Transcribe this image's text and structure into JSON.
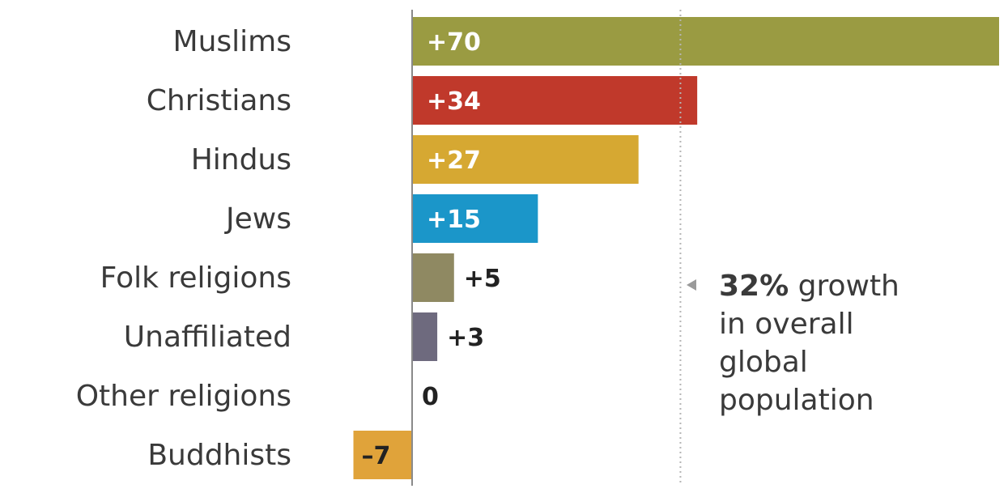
{
  "chart_data": {
    "type": "bar",
    "orientation": "horizontal",
    "categories": [
      "Muslims",
      "Christians",
      "Hindus",
      "Jews",
      "Folk religions",
      "Unaffiliated",
      "Other religions",
      "Buddhists"
    ],
    "values": [
      70,
      34,
      27,
      15,
      5,
      3,
      0,
      -7
    ],
    "value_labels": [
      "+70",
      "+34",
      "+27",
      "+15",
      "+5",
      "+3",
      "0",
      "–7"
    ],
    "colors": [
      "#9a9b42",
      "#c0392b",
      "#d6a832",
      "#1b96c9",
      "#8f8962",
      "#6e6a7e",
      "#ffffff",
      "#e0a33a"
    ],
    "xlim": [
      -7,
      70
    ],
    "reference_line": {
      "value": 32,
      "label_bold": "32%",
      "label_lines": [
        " growth",
        "in overall",
        "global",
        "population"
      ]
    }
  }
}
